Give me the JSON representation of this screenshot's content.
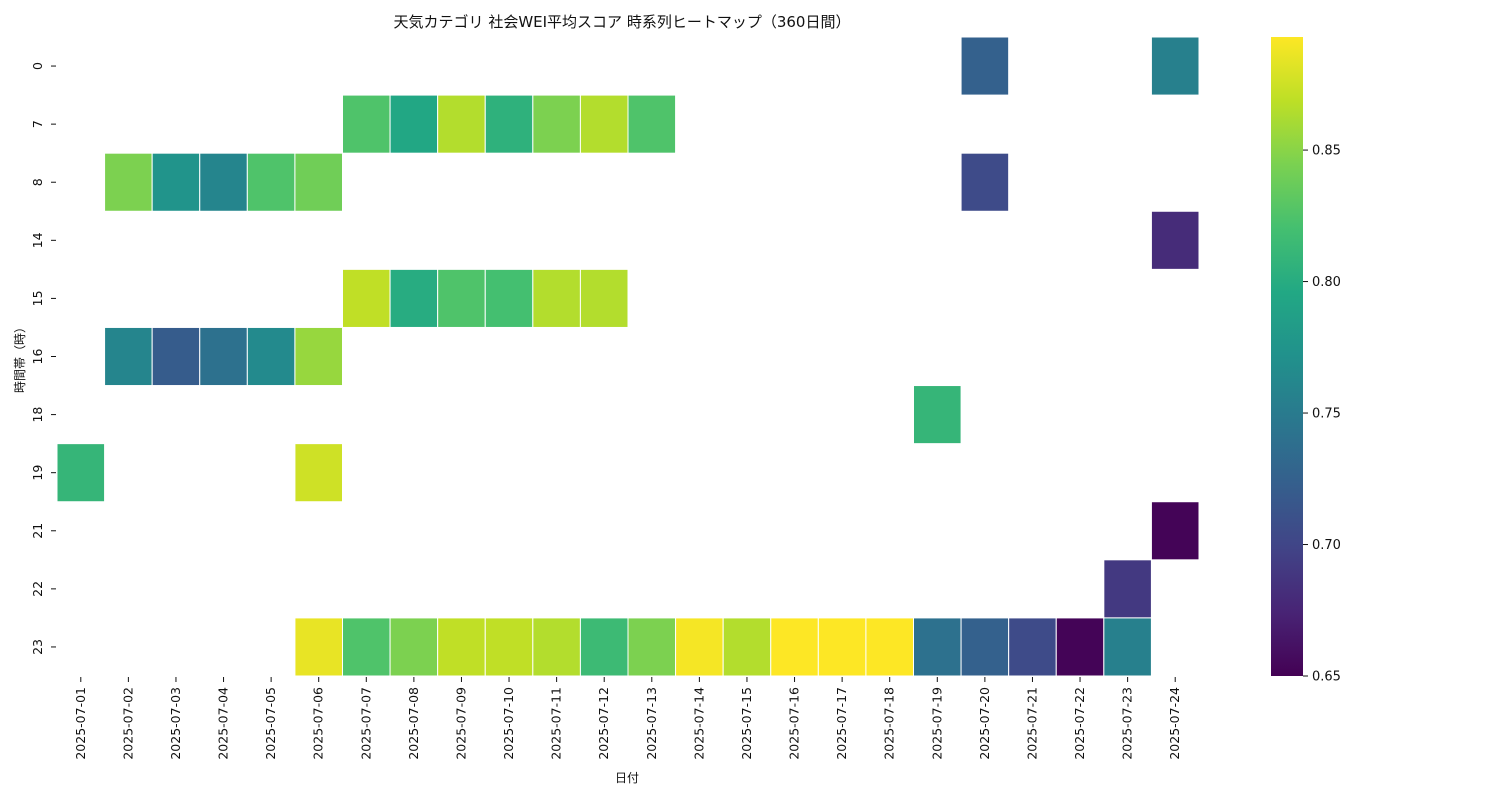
{
  "chart_data": {
    "type": "heatmap",
    "title": "天気カテゴリ 社会WEI平均スコア 時系列ヒートマップ（360日間）",
    "xlabel": "日付",
    "ylabel": "時間帯（時）",
    "colormap": "viridis",
    "x": [
      "2025-07-01",
      "2025-07-02",
      "2025-07-03",
      "2025-07-04",
      "2025-07-05",
      "2025-07-06",
      "2025-07-07",
      "2025-07-08",
      "2025-07-09",
      "2025-07-10",
      "2025-07-11",
      "2025-07-12",
      "2025-07-13",
      "2025-07-14",
      "2025-07-15",
      "2025-07-16",
      "2025-07-17",
      "2025-07-18",
      "2025-07-19",
      "2025-07-20",
      "2025-07-21",
      "2025-07-22",
      "2025-07-23",
      "2025-07-24"
    ],
    "y": [
      "0",
      "7",
      "8",
      "14",
      "15",
      "16",
      "18",
      "19",
      "21",
      "22",
      "23"
    ],
    "colorbar": {
      "min": 0.65,
      "max": 0.893,
      "ticks": [
        "0.65",
        "0.70",
        "0.75",
        "0.80",
        "0.85"
      ]
    },
    "values": [
      [
        null,
        null,
        null,
        null,
        null,
        null,
        null,
        null,
        null,
        null,
        null,
        null,
        null,
        null,
        null,
        null,
        null,
        null,
        null,
        0.725,
        null,
        null,
        null,
        0.755
      ],
      [
        null,
        null,
        null,
        null,
        null,
        null,
        0.825,
        0.795,
        0.865,
        0.805,
        0.845,
        0.865,
        0.825,
        null,
        null,
        null,
        null,
        null,
        null,
        null,
        null,
        null,
        null,
        null
      ],
      [
        null,
        0.845,
        0.775,
        0.76,
        0.825,
        0.84,
        null,
        null,
        null,
        null,
        null,
        null,
        null,
        null,
        null,
        null,
        null,
        null,
        null,
        0.705,
        null,
        null,
        null,
        null
      ],
      [
        null,
        null,
        null,
        null,
        null,
        null,
        null,
        null,
        null,
        null,
        null,
        null,
        null,
        null,
        null,
        null,
        null,
        null,
        null,
        null,
        null,
        null,
        null,
        0.68
      ],
      [
        null,
        null,
        null,
        null,
        null,
        null,
        0.87,
        0.8,
        0.825,
        0.82,
        0.865,
        0.865,
        null,
        null,
        null,
        null,
        null,
        null,
        null,
        null,
        null,
        null,
        null,
        null
      ],
      [
        null,
        0.76,
        0.72,
        0.74,
        0.765,
        0.855,
        null,
        null,
        null,
        null,
        null,
        null,
        null,
        null,
        null,
        null,
        null,
        null,
        null,
        null,
        null,
        null,
        null,
        null
      ],
      [
        null,
        null,
        null,
        null,
        null,
        null,
        null,
        null,
        null,
        null,
        null,
        null,
        null,
        null,
        null,
        null,
        null,
        null,
        0.81,
        null,
        null,
        null,
        null,
        null
      ],
      [
        0.81,
        null,
        null,
        null,
        null,
        0.875,
        null,
        null,
        null,
        null,
        null,
        null,
        null,
        null,
        null,
        null,
        null,
        null,
        null,
        null,
        null,
        null,
        null,
        null
      ],
      [
        null,
        null,
        null,
        null,
        null,
        null,
        null,
        null,
        null,
        null,
        null,
        null,
        null,
        null,
        null,
        null,
        null,
        null,
        null,
        null,
        null,
        null,
        null,
        0.652
      ],
      [
        null,
        null,
        null,
        null,
        null,
        null,
        null,
        null,
        null,
        null,
        null,
        null,
        null,
        null,
        null,
        null,
        null,
        null,
        null,
        null,
        null,
        null,
        0.69,
        null
      ],
      [
        null,
        null,
        null,
        null,
        null,
        0.885,
        0.825,
        0.845,
        0.87,
        0.87,
        0.865,
        0.815,
        0.845,
        0.89,
        0.865,
        0.893,
        0.893,
        0.893,
        0.74,
        0.725,
        0.705,
        0.652,
        0.755,
        null
      ]
    ]
  }
}
